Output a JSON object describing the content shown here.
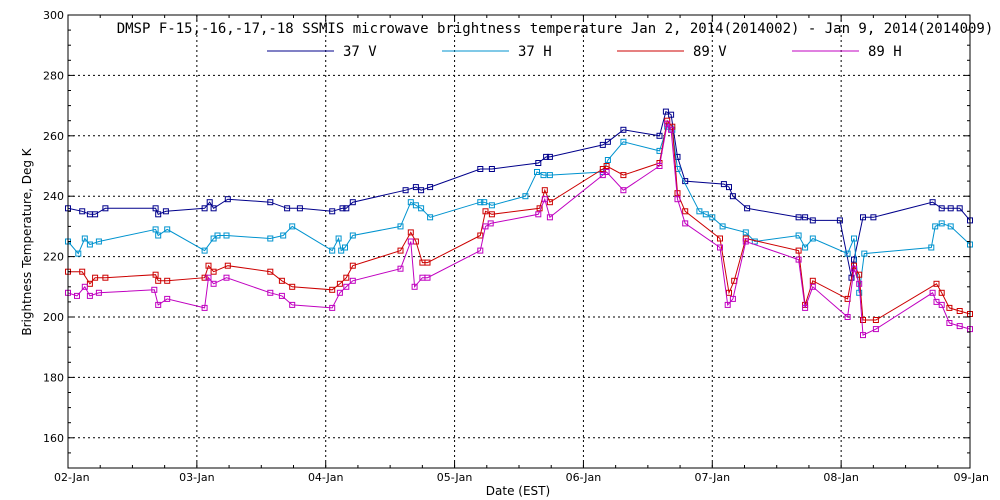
{
  "chart_data": {
    "type": "line",
    "title": "DMSP F-15,-16,-17,-18 SSMIS microwave brightness temperature Jan  2, 2014(2014002) - Jan  9, 2014(2014009)",
    "xlabel": "Date (EST)",
    "ylabel": "Brightness Temperature, Deg K",
    "xlim": [
      0,
      7
    ],
    "ylim": [
      150,
      300
    ],
    "x_tick_labels": [
      "02-Jan",
      "03-Jan",
      "04-Jan",
      "05-Jan",
      "06-Jan",
      "07-Jan",
      "08-Jan",
      "09-Jan"
    ],
    "y_ticks": [
      160,
      180,
      200,
      220,
      240,
      260,
      280,
      300
    ],
    "grid": true,
    "legend_position": "top-center",
    "series": [
      {
        "name": "37 V",
        "color": "#00008b",
        "x": [
          0.0,
          0.11,
          0.17,
          0.21,
          0.29,
          0.68,
          0.7,
          0.76,
          1.06,
          1.1,
          1.13,
          1.24,
          1.57,
          1.7,
          1.8,
          2.05,
          2.13,
          2.16,
          2.21,
          2.62,
          2.7,
          2.74,
          2.81,
          3.2,
          3.29,
          3.65,
          3.71,
          3.74,
          4.15,
          4.19,
          4.31,
          4.59,
          4.64,
          4.68,
          4.73,
          4.79,
          5.09,
          5.13,
          5.16,
          5.27,
          5.67,
          5.72,
          5.78,
          5.99,
          6.08,
          6.1,
          6.17,
          6.25,
          6.71,
          6.78,
          6.85,
          6.92,
          7.0
        ],
        "y": [
          236,
          235,
          234,
          234,
          236,
          236,
          234,
          235,
          236,
          238,
          236,
          239,
          238,
          236,
          236,
          235,
          236,
          236,
          238,
          242,
          243,
          242,
          243,
          249,
          249,
          251,
          253,
          253,
          257,
          258,
          262,
          260,
          268,
          267,
          253,
          245,
          244,
          243,
          240,
          236,
          233,
          233,
          232,
          232,
          213,
          219,
          233,
          233,
          238,
          236,
          236,
          236,
          232
        ]
      },
      {
        "name": "37 H",
        "color": "#0093cf",
        "x": [
          0.0,
          0.08,
          0.13,
          0.17,
          0.24,
          0.68,
          0.7,
          0.77,
          1.06,
          1.13,
          1.16,
          1.23,
          1.57,
          1.67,
          1.74,
          2.05,
          2.1,
          2.12,
          2.15,
          2.21,
          2.58,
          2.66,
          2.7,
          2.74,
          2.81,
          3.2,
          3.23,
          3.29,
          3.55,
          3.64,
          3.69,
          3.74,
          4.15,
          4.19,
          4.31,
          4.59,
          4.65,
          4.69,
          4.73,
          4.9,
          4.95,
          5.0,
          5.08,
          5.26,
          5.33,
          5.67,
          5.72,
          5.78,
          6.05,
          6.1,
          6.14,
          6.18,
          6.7,
          6.73,
          6.78,
          6.85,
          7.0
        ],
        "y": [
          225,
          221,
          226,
          224,
          225,
          229,
          227,
          229,
          222,
          226,
          227,
          227,
          226,
          227,
          230,
          222,
          226,
          222,
          223,
          227,
          230,
          238,
          237,
          236,
          233,
          238,
          238,
          237,
          240,
          248,
          247,
          247,
          248,
          252,
          258,
          255,
          263,
          262,
          249,
          235,
          234,
          233,
          230,
          228,
          225,
          227,
          223,
          226,
          221,
          226,
          208,
          221,
          223,
          230,
          231,
          230,
          224
        ]
      },
      {
        "name": "89 V",
        "color": "#cc0000",
        "x": [
          0.0,
          0.11,
          0.17,
          0.21,
          0.29,
          0.68,
          0.7,
          0.77,
          1.06,
          1.09,
          1.13,
          1.24,
          1.57,
          1.66,
          1.74,
          2.05,
          2.11,
          2.16,
          2.21,
          2.58,
          2.66,
          2.7,
          2.75,
          2.79,
          3.2,
          3.24,
          3.29,
          3.66,
          3.7,
          3.74,
          4.15,
          4.18,
          4.31,
          4.59,
          4.65,
          4.69,
          4.73,
          4.79,
          5.06,
          5.13,
          5.17,
          5.26,
          5.67,
          5.72,
          5.78,
          6.05,
          6.1,
          6.14,
          6.17,
          6.27,
          6.74,
          6.78,
          6.84,
          6.92,
          7.0
        ],
        "y": [
          215,
          215,
          211,
          213,
          213,
          214,
          212,
          212,
          213,
          217,
          215,
          217,
          215,
          212,
          210,
          209,
          211,
          213,
          217,
          222,
          228,
          225,
          218,
          218,
          227,
          235,
          234,
          236,
          242,
          238,
          249,
          250,
          247,
          251,
          265,
          263,
          241,
          235,
          226,
          208,
          212,
          226,
          222,
          204,
          212,
          206,
          217,
          214,
          199,
          199,
          211,
          208,
          203,
          202,
          201
        ]
      },
      {
        "name": "89 H",
        "color": "#c000c0",
        "x": [
          0.0,
          0.07,
          0.13,
          0.17,
          0.24,
          0.67,
          0.7,
          0.77,
          1.06,
          1.09,
          1.13,
          1.23,
          1.57,
          1.66,
          1.74,
          2.05,
          2.11,
          2.16,
          2.21,
          2.58,
          2.66,
          2.69,
          2.75,
          2.79,
          3.2,
          3.24,
          3.28,
          3.65,
          3.7,
          3.74,
          4.15,
          4.18,
          4.31,
          4.59,
          4.65,
          4.68,
          4.73,
          4.79,
          5.06,
          5.12,
          5.16,
          5.26,
          5.67,
          5.72,
          5.78,
          6.05,
          6.1,
          6.14,
          6.17,
          6.27,
          6.71,
          6.74,
          6.78,
          6.84,
          6.92,
          7.0
        ],
        "y": [
          208,
          207,
          210,
          207,
          208,
          209,
          204,
          206,
          203,
          213,
          211,
          213,
          208,
          207,
          204,
          203,
          208,
          210,
          212,
          216,
          225,
          210,
          213,
          213,
          222,
          230,
          231,
          234,
          239,
          233,
          247,
          248,
          242,
          250,
          264,
          262,
          239,
          231,
          223,
          204,
          206,
          225,
          219,
          203,
          210,
          200,
          216,
          211,
          194,
          196,
          208,
          205,
          204,
          198,
          197,
          196
        ]
      }
    ]
  }
}
